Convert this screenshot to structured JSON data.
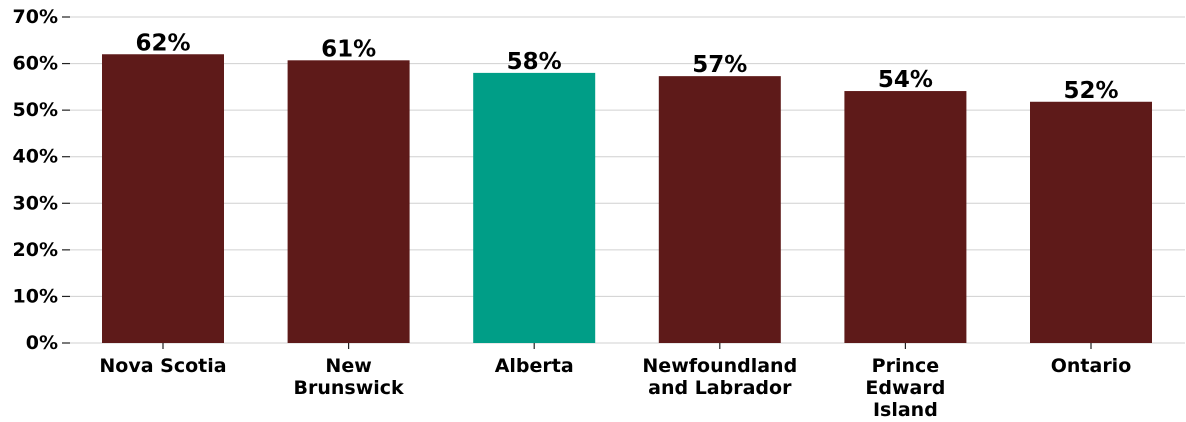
{
  "chart_data": {
    "type": "bar",
    "title": "",
    "xlabel": "",
    "ylabel": "",
    "categories": [
      [
        "Nova Scotia"
      ],
      [
        "New",
        "Brunswick"
      ],
      [
        "Alberta"
      ],
      [
        "Newfoundland",
        "and Labrador"
      ],
      [
        "Prince",
        "Edward",
        "Island"
      ],
      [
        "Ontario"
      ]
    ],
    "values": [
      62,
      60.7,
      58,
      57.3,
      54.1,
      51.8
    ],
    "data_labels": [
      "62%",
      "61%",
      "58%",
      "57%",
      "54%",
      "52%"
    ],
    "ylim": [
      0,
      70
    ],
    "yticks": [
      0,
      10,
      20,
      30,
      40,
      50,
      60,
      70
    ],
    "ytick_labels": [
      "0%",
      "10%",
      "20%",
      "30%",
      "40%",
      "50%",
      "60%",
      "70%"
    ],
    "grid": "horizontal",
    "colors": {
      "default": "#5e1a19",
      "highlight": "#009e87"
    },
    "highlight_index": 2
  }
}
